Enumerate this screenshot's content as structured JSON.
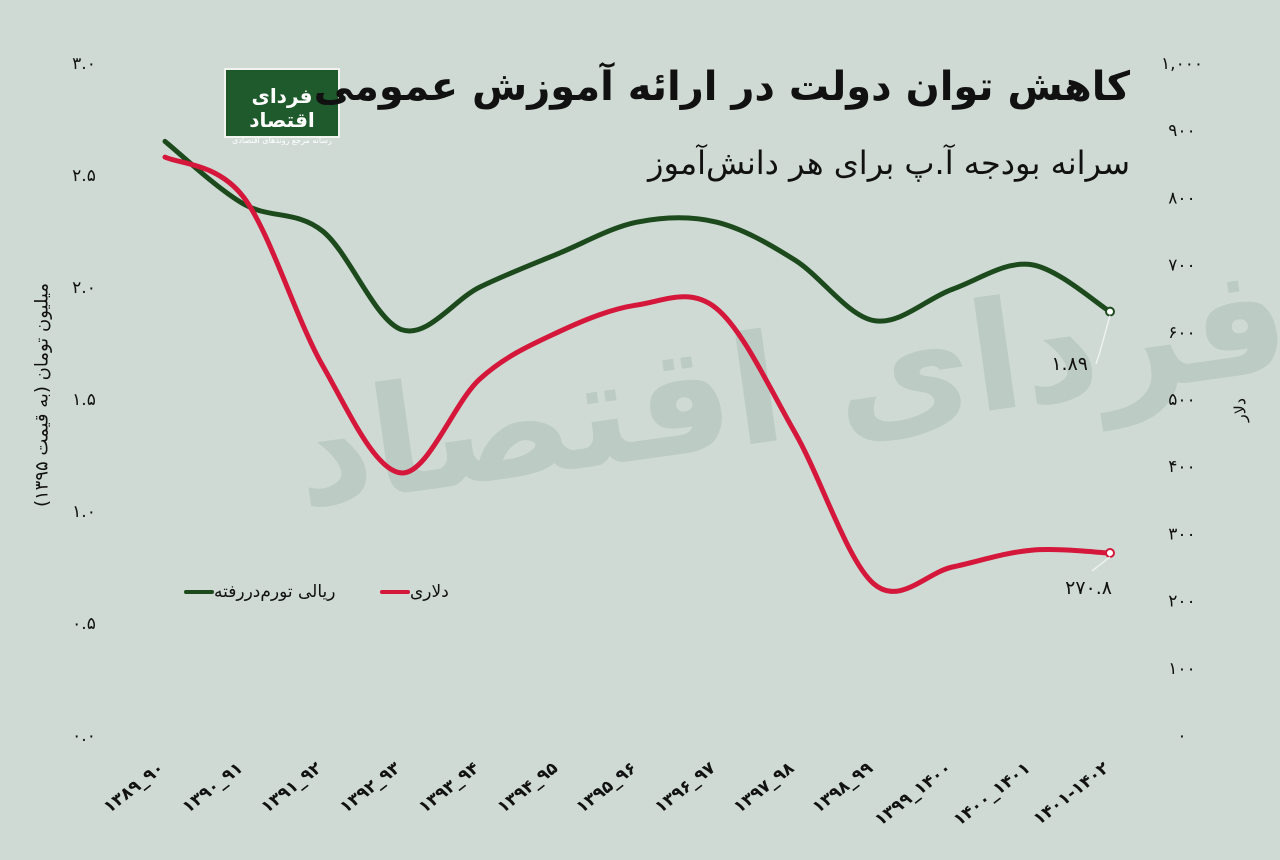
{
  "title": "کاهش توان دولت در ارائه آموزش عمومی",
  "subtitle": "سرانه بودجه آ.پ برای هر دانش‌آموز",
  "logo": {
    "name": "فردای اقتصاد",
    "tagline": "رسانه مرجع روندهای اقتصادی"
  },
  "watermark": "فردای اقتصاد",
  "chart_data": {
    "type": "line",
    "categories": [
      "۱۳۸۹_۹۰",
      "۱۳۹۰_۹۱",
      "۱۳۹۱_۹۲",
      "۱۳۹۲_۹۳",
      "۱۳۹۳_۹۴",
      "۱۳۹۴_۹۵",
      "۱۳۹۵_۹۶",
      "۱۳۹۶_۹۷",
      "۱۳۹۷_۹۸",
      "۱۳۹۸_۹۹",
      "۱۳۹۹_۱۴۰۰",
      "۱۴۰۰_۱۴۰۱",
      "۱۴۰۱-۱۴۰۲"
    ],
    "series": [
      {
        "name": "ریالی تورم‌دررفته",
        "axis": "left",
        "color": "#1c4a1c",
        "values": [
          2.65,
          2.37,
          2.25,
          1.81,
          2.0,
          2.15,
          2.29,
          2.29,
          2.12,
          1.85,
          1.99,
          2.1,
          1.89
        ]
      },
      {
        "name": "دلاری",
        "axis": "right",
        "color": "#d4173a",
        "values": [
          860,
          800,
          550,
          390,
          530,
          600,
          640,
          635,
          450,
          225,
          250,
          275,
          270.8
        ]
      }
    ],
    "ylabel_left": "میلیون تومان (به قیمت ۱۳۹۵)",
    "ylabel_right": "دلار",
    "ylim_left": [
      0,
      3
    ],
    "ylim_right": [
      0,
      1000
    ],
    "yticks_left": [
      "۰.۰",
      "۰.۵",
      "۱.۰",
      "۱.۵",
      "۲.۰",
      "۲.۵",
      "۳.۰"
    ],
    "yticks_right": [
      "۰",
      "۱۰۰",
      "۲۰۰",
      "۳۰۰",
      "۴۰۰",
      "۵۰۰",
      "۶۰۰",
      "۷۰۰",
      "۸۰۰",
      "۹۰۰",
      "۱,۰۰۰"
    ],
    "annotations": [
      {
        "series": 0,
        "index": 12,
        "text": "۱.۸۹"
      },
      {
        "series": 1,
        "index": 12,
        "text": "۲۷۰.۸"
      }
    ],
    "legend_position": "left-middle",
    "grid": false
  }
}
